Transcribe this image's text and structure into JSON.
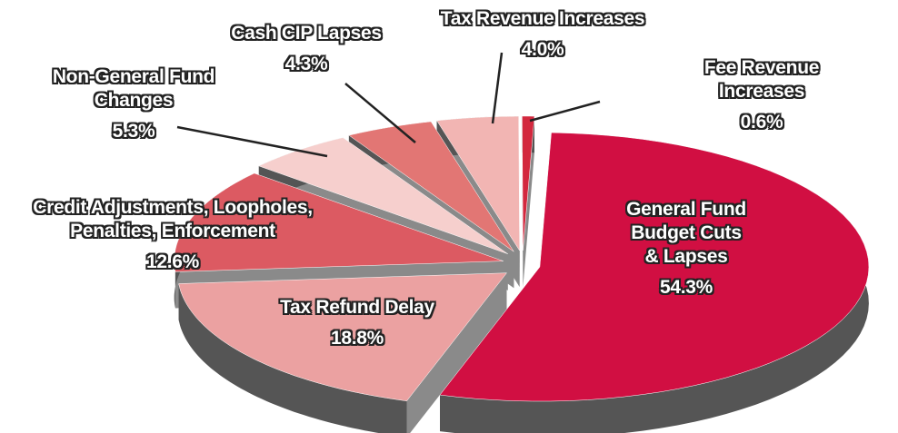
{
  "chart_data": {
    "type": "pie",
    "categories": [
      "General Fund\nBudget Cuts\n& Lapses",
      "Tax Refund Delay",
      "Credit Adjustments, Loopholes,\nPenalties, Enforcement",
      "Non-General Fund\nChanges",
      "Cash CIP Lapses",
      "Tax Revenue Increases",
      "Fee Revenue Increases"
    ],
    "values": [
      54.3,
      18.8,
      12.6,
      5.3,
      4.3,
      4.0,
      0.6
    ],
    "value_labels": [
      "54.3%",
      "18.8%",
      "12.6%",
      "5.3%",
      "4.3%",
      "4.0%",
      "0.6%"
    ],
    "colors": [
      "#d10f42",
      "#eba1a1",
      "#dc5a62",
      "#f6cfcd",
      "#e27674",
      "#f2b5b3",
      "#d3283e"
    ]
  }
}
